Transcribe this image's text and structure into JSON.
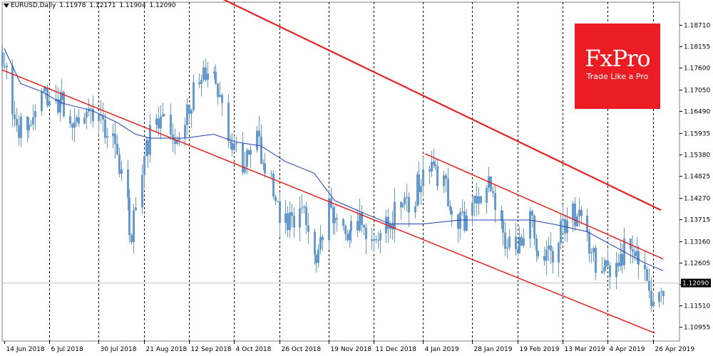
{
  "header": {
    "symbol": "EURUSD,Daily",
    "open": "1.11978",
    "high": "1.12171",
    "low": "1.11904",
    "close": "1.12090"
  },
  "logo": {
    "brand": "FxPro",
    "tagline": "Trade Like a Pro"
  },
  "colors": {
    "candle": "#6699cc",
    "moving_average": "#1f3fb0",
    "trend_lines": "#e32222",
    "grid": "#000000",
    "axis": "#808080",
    "logo_bg": "#ec1c24",
    "current_price_label_bg": "#000000"
  },
  "chart_data": {
    "type": "candlestick",
    "symbol": "EURUSD",
    "timeframe": "Daily",
    "x_range": [
      "2018-06-13",
      "2019-05-01"
    ],
    "ylim": [
      1.1065,
      1.1905
    ],
    "y_ticks": [
      "1.18710",
      "1.18155",
      "1.17600",
      "1.17050",
      "1.16490",
      "1.15935",
      "1.15380",
      "1.14825",
      "1.14270",
      "1.13715",
      "1.13160",
      "1.12605",
      "1.12050",
      "1.11510",
      "1.10955"
    ],
    "x_labels": [
      "14 Jun 2018",
      "6 Jul 2018",
      "30 Jul 2018",
      "21 Aug 2018",
      "12 Sep 2018",
      "4 Oct 2018",
      "26 Oct 2018",
      "19 Nov 2018",
      "11 Dec 2018",
      "4 Jan 2019",
      "28 Jan 2019",
      "19 Feb 2019",
      "13 Mar 2019",
      "4 Apr 2019",
      "26 Apr 2019"
    ],
    "current_price": "1.12090",
    "grid": "vertical dashed",
    "path_points": [
      [
        "2018-06-13",
        1.18
      ],
      [
        "2018-06-20",
        1.159
      ],
      [
        "2018-06-27",
        1.163
      ],
      [
        "2018-07-04",
        1.17
      ],
      [
        "2018-07-11",
        1.167
      ],
      [
        "2018-07-18",
        1.164
      ],
      [
        "2018-07-25",
        1.166
      ],
      [
        "2018-07-31",
        1.162
      ],
      [
        "2018-08-08",
        1.154
      ],
      [
        "2018-08-15",
        1.134
      ],
      [
        "2018-08-22",
        1.156
      ],
      [
        "2018-08-29",
        1.163
      ],
      [
        "2018-09-05",
        1.158
      ],
      [
        "2018-09-12",
        1.166
      ],
      [
        "2018-09-18",
        1.176
      ],
      [
        "2018-09-24",
        1.172
      ],
      [
        "2018-10-01",
        1.16
      ],
      [
        "2018-10-08",
        1.15
      ],
      [
        "2018-10-15",
        1.158
      ],
      [
        "2018-10-22",
        1.146
      ],
      [
        "2018-10-29",
        1.135
      ],
      [
        "2018-11-05",
        1.141
      ],
      [
        "2018-11-12",
        1.127
      ],
      [
        "2018-11-19",
        1.142
      ],
      [
        "2018-11-27",
        1.133
      ],
      [
        "2018-12-05",
        1.137
      ],
      [
        "2018-12-13",
        1.131
      ],
      [
        "2018-12-21",
        1.139
      ],
      [
        "2018-12-31",
        1.144
      ],
      [
        "2019-01-08",
        1.152
      ],
      [
        "2019-01-14",
        1.146
      ],
      [
        "2019-01-21",
        1.136
      ],
      [
        "2019-01-28",
        1.14
      ],
      [
        "2019-02-04",
        1.148
      ],
      [
        "2019-02-11",
        1.134
      ],
      [
        "2019-02-18",
        1.131
      ],
      [
        "2019-02-25",
        1.136
      ],
      [
        "2019-03-04",
        1.127
      ],
      [
        "2019-03-11",
        1.132
      ],
      [
        "2019-03-18",
        1.14
      ],
      [
        "2019-03-25",
        1.132
      ],
      [
        "2019-04-01",
        1.122
      ],
      [
        "2019-04-08",
        1.127
      ],
      [
        "2019-04-15",
        1.131
      ],
      [
        "2019-04-22",
        1.121
      ],
      [
        "2019-04-26",
        1.113
      ],
      [
        "2019-05-01",
        1.1209
      ]
    ],
    "moving_average": [
      [
        "2018-06-14",
        1.181
      ],
      [
        "2018-06-22",
        1.172
      ],
      [
        "2018-07-02",
        1.17
      ],
      [
        "2018-07-12",
        1.167
      ],
      [
        "2018-07-27",
        1.165
      ],
      [
        "2018-08-08",
        1.162
      ],
      [
        "2018-08-17",
        1.159
      ],
      [
        "2018-08-24",
        1.158
      ],
      [
        "2018-09-10",
        1.158
      ],
      [
        "2018-09-24",
        1.159
      ],
      [
        "2018-10-05",
        1.157
      ],
      [
        "2018-10-17",
        1.156
      ],
      [
        "2018-10-29",
        1.152
      ],
      [
        "2018-11-12",
        1.149
      ],
      [
        "2018-11-22",
        1.142
      ],
      [
        "2018-12-05",
        1.139
      ],
      [
        "2018-12-19",
        1.136
      ],
      [
        "2019-01-04",
        1.136
      ],
      [
        "2019-01-22",
        1.137
      ],
      [
        "2019-02-08",
        1.137
      ],
      [
        "2019-02-25",
        1.137
      ],
      [
        "2019-03-08",
        1.136
      ],
      [
        "2019-03-25",
        1.134
      ],
      [
        "2019-04-08",
        1.13
      ],
      [
        "2019-04-22",
        1.126
      ],
      [
        "2019-05-01",
        1.124
      ]
    ],
    "trend_lines": [
      {
        "start": [
          "2018-06-13",
          1.1755
        ],
        "end": [
          "2019-04-27",
          1.108
        ],
        "width": 1.5
      },
      {
        "start": [
          "2019-01-05",
          1.154
        ],
        "end": [
          "2019-05-01",
          1.127
        ],
        "width": 1.5
      },
      {
        "start": [
          "2018-09-29",
          1.1935
        ],
        "end": [
          "2019-04-30",
          1.1395
        ],
        "width": 2.2
      }
    ]
  }
}
